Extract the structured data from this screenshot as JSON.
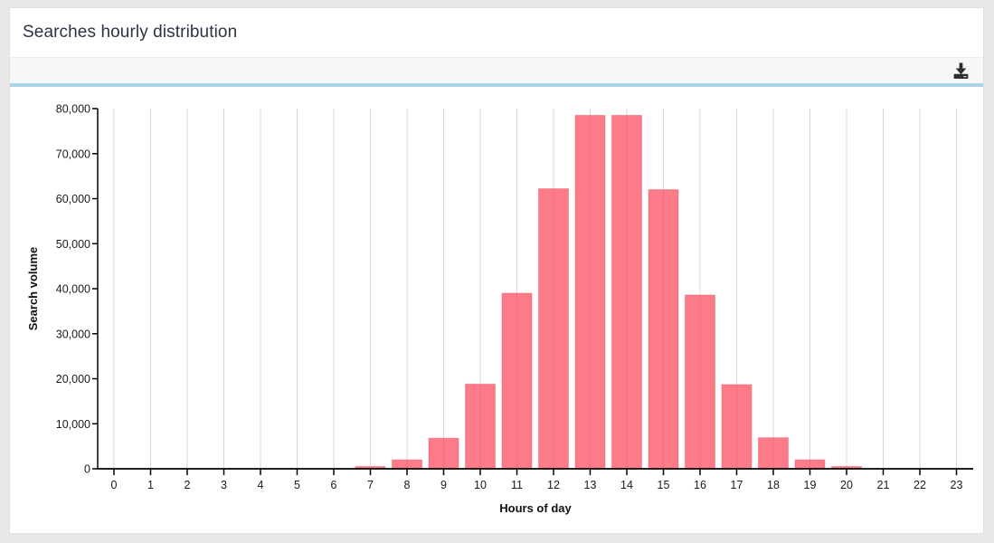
{
  "window": {
    "title": "Searches hourly distribution"
  },
  "toolbar": {
    "export_action": "Export / Download"
  },
  "colors": {
    "page_bg": "#e9e8e6",
    "card_bg": "#ffffff",
    "toolbar_bg": "#f7f7f7",
    "accent_line": "#aad3e8",
    "title_color": "#2b3445",
    "bar_fill": "#fb4a5d",
    "bar_stroke": "#fb4a5d",
    "gridline": "#d8d8d8",
    "axis": "#000000"
  },
  "chart_data": {
    "type": "bar",
    "title": "Searches hourly distribution",
    "xlabel": "Hours of day",
    "ylabel": "Search volume",
    "categories": [
      "0",
      "1",
      "2",
      "3",
      "4",
      "5",
      "6",
      "7",
      "8",
      "9",
      "10",
      "11",
      "12",
      "13",
      "14",
      "15",
      "16",
      "17",
      "18",
      "19",
      "20",
      "21",
      "22",
      "23"
    ],
    "values": [
      0,
      0,
      0,
      0,
      0,
      0,
      0,
      500,
      2000,
      6800,
      18800,
      39000,
      62200,
      78500,
      78500,
      62000,
      38600,
      18700,
      6900,
      2000,
      500,
      0,
      0,
      0
    ],
    "ylim": [
      0,
      80000
    ],
    "ytick_interval": 10000,
    "yticks": [
      0,
      10000,
      20000,
      30000,
      40000,
      50000,
      60000,
      70000,
      80000
    ],
    "ytick_labels": [
      "0",
      "10,000",
      "20,000",
      "30,000",
      "40,000",
      "50,000",
      "60,000",
      "70,000",
      "80,000"
    ],
    "grid": "vertical-only",
    "legend": "none",
    "bar_opacity": 0.73,
    "bar_stroke_opacity": 0.4
  }
}
